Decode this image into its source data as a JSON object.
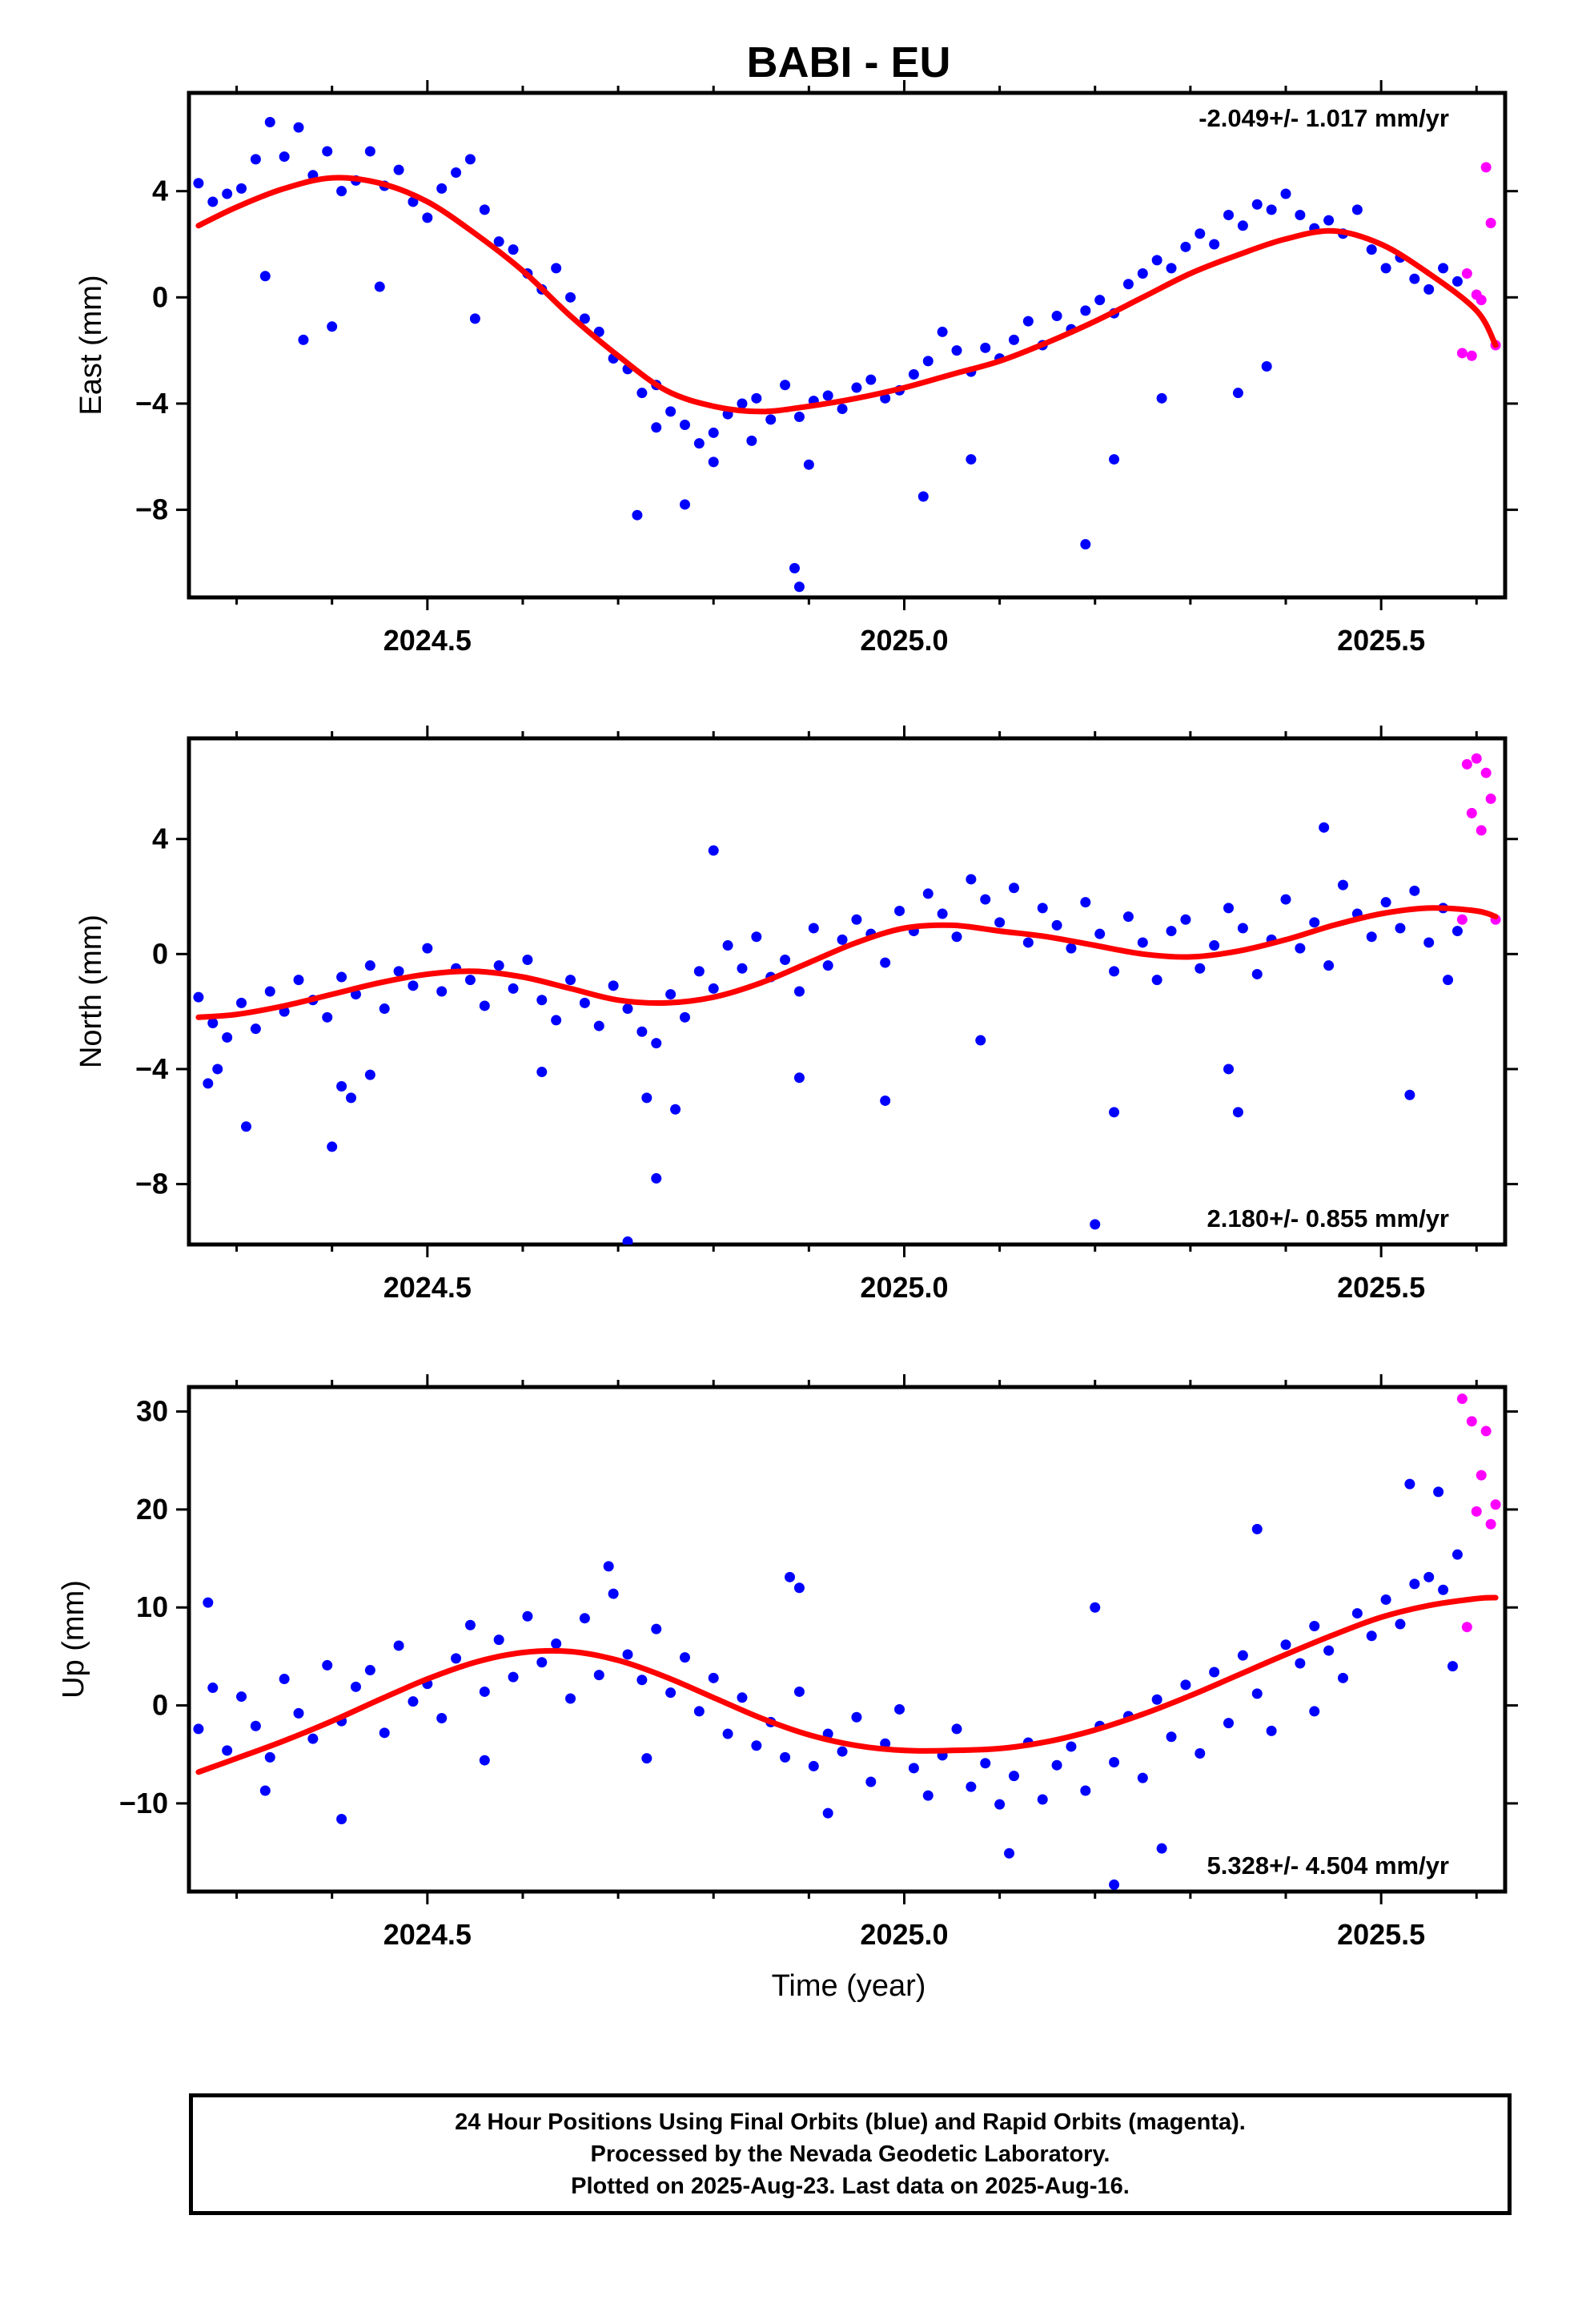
{
  "title": "BABI - EU",
  "x_axis_label": "Time (year)",
  "colors": {
    "final": "#0000ff",
    "rapid": "#ff00ff",
    "fit": "#ff0000"
  },
  "caption": [
    "24 Hour Positions Using Final Orbits (blue) and Rapid Orbits (magenta).",
    "Processed by the Nevada Geodetic Laboratory.",
    "Plotted on 2025-Aug-23. Last data on 2025-Aug-16."
  ],
  "chart_data": [
    {
      "type": "scatter",
      "ylabel": "East (mm)",
      "rate_text": "-2.049+/- 1.017 mm/yr",
      "rate_position": "top-right",
      "xlim": [
        2024.25,
        2025.63
      ],
      "ylim": [
        -11.3,
        7.7
      ],
      "xticks": [
        "2024.5",
        "2025.0",
        "2025.5"
      ],
      "yticks": [
        "4",
        "0",
        "−4",
        "−8"
      ],
      "fit": {
        "x": [
          2024.26,
          2024.3,
          2024.35,
          2024.4,
          2024.45,
          2024.5,
          2024.55,
          2024.6,
          2024.65,
          2024.7,
          2024.75,
          2024.8,
          2024.85,
          2024.9,
          2024.95,
          2025.0,
          2025.05,
          2025.1,
          2025.15,
          2025.2,
          2025.25,
          2025.3,
          2025.35,
          2025.4,
          2025.45,
          2025.5,
          2025.55,
          2025.6,
          2025.62
        ],
        "y": [
          2.7,
          3.4,
          4.1,
          4.5,
          4.3,
          3.6,
          2.4,
          1.0,
          -0.7,
          -2.2,
          -3.5,
          -4.1,
          -4.3,
          -4.1,
          -3.8,
          -3.4,
          -2.9,
          -2.4,
          -1.7,
          -0.9,
          0.0,
          0.9,
          1.6,
          2.2,
          2.5,
          2.0,
          0.9,
          -0.5,
          -1.8
        ]
      },
      "final_points": {
        "x": [
          2024.26,
          2024.275,
          2024.29,
          2024.305,
          2024.32,
          2024.335,
          2024.35,
          2024.365,
          2024.38,
          2024.395,
          2024.41,
          2024.425,
          2024.44,
          2024.455,
          2024.47,
          2024.485,
          2024.5,
          2024.515,
          2024.53,
          2024.545,
          2024.56,
          2024.575,
          2024.59,
          2024.605,
          2024.62,
          2024.635,
          2024.65,
          2024.665,
          2024.68,
          2024.695,
          2024.71,
          2024.725,
          2024.74,
          2024.755,
          2024.77,
          2024.785,
          2024.8,
          2024.815,
          2024.83,
          2024.845,
          2024.86,
          2024.875,
          2024.89,
          2024.905,
          2024.92,
          2024.935,
          2024.95,
          2024.965,
          2024.98,
          2024.995,
          2025.01,
          2025.025,
          2025.04,
          2025.055,
          2025.07,
          2025.085,
          2025.1,
          2025.115,
          2025.13,
          2025.145,
          2025.16,
          2025.175,
          2025.19,
          2025.205,
          2025.22,
          2025.235,
          2025.25,
          2025.265,
          2025.28,
          2025.295,
          2025.31,
          2025.325,
          2025.34,
          2025.355,
          2025.37,
          2025.385,
          2025.4,
          2025.415,
          2025.43,
          2025.445,
          2025.46,
          2025.475,
          2025.49,
          2025.505,
          2025.52,
          2025.535,
          2025.55,
          2025.565,
          2025.58,
          2024.33,
          2024.37,
          2024.4,
          2024.45,
          2024.55,
          2024.72,
          2024.74,
          2024.77,
          2024.8,
          2024.84,
          2024.885,
          2024.89,
          2024.9,
          2025.02,
          2025.07,
          2025.19,
          2025.22,
          2025.27,
          2025.35,
          2025.38
        ],
        "y": [
          4.3,
          3.6,
          3.9,
          4.1,
          5.2,
          6.6,
          5.3,
          6.4,
          4.6,
          5.5,
          4.0,
          4.4,
          5.5,
          4.2,
          4.8,
          3.6,
          3.0,
          4.1,
          4.7,
          5.2,
          3.3,
          2.1,
          1.8,
          0.9,
          0.3,
          1.1,
          0.0,
          -0.8,
          -1.3,
          -2.3,
          -2.7,
          -3.6,
          -3.3,
          -4.3,
          -4.8,
          -5.5,
          -5.1,
          -4.4,
          -4.0,
          -3.8,
          -4.6,
          -3.3,
          -4.5,
          -3.9,
          -3.7,
          -4.2,
          -3.4,
          -3.1,
          -3.8,
          -3.5,
          -2.9,
          -2.4,
          -1.3,
          -2.0,
          -2.8,
          -1.9,
          -2.3,
          -1.6,
          -0.9,
          -1.8,
          -0.7,
          -1.2,
          -0.5,
          -0.1,
          -0.6,
          0.5,
          0.9,
          1.4,
          1.1,
          1.9,
          2.4,
          2.0,
          3.1,
          2.7,
          3.5,
          3.3,
          3.9,
          3.1,
          2.6,
          2.9,
          2.4,
          3.3,
          1.8,
          1.1,
          1.5,
          0.7,
          0.3,
          1.1,
          0.6,
          0.8,
          -1.6,
          -1.1,
          0.4,
          -0.8,
          -8.2,
          -4.9,
          -7.8,
          -6.2,
          -5.4,
          -10.2,
          -10.9,
          -6.3,
          -7.5,
          -6.1,
          -9.3,
          -6.1,
          -3.8,
          -3.6,
          -2.6
        ],
        "note": ""
      },
      "rapid_points": {
        "x": [
          2025.585,
          2025.59,
          2025.595,
          2025.6,
          2025.605,
          2025.61,
          2025.615,
          2025.62
        ],
        "y": [
          -2.1,
          0.9,
          -2.2,
          0.1,
          -0.1,
          4.9,
          2.8,
          -1.8
        ]
      }
    },
    {
      "type": "scatter",
      "ylabel": "North (mm)",
      "rate_text": "2.180+/- 0.855 mm/yr",
      "rate_position": "bottom-right",
      "xlim": [
        2024.25,
        2025.63
      ],
      "ylim": [
        -10.1,
        7.5
      ],
      "xticks": [
        "2024.5",
        "2025.0",
        "2025.5"
      ],
      "yticks": [
        "4",
        "0",
        "−4",
        "−8"
      ],
      "fit": {
        "x": [
          2024.26,
          2024.3,
          2024.35,
          2024.4,
          2024.45,
          2024.5,
          2024.55,
          2024.6,
          2024.65,
          2024.7,
          2024.75,
          2024.8,
          2024.85,
          2024.9,
          2024.95,
          2025.0,
          2025.05,
          2025.1,
          2025.15,
          2025.2,
          2025.25,
          2025.3,
          2025.35,
          2025.4,
          2025.45,
          2025.5,
          2025.55,
          2025.6,
          2025.62
        ],
        "y": [
          -2.2,
          -2.1,
          -1.8,
          -1.4,
          -1.0,
          -0.7,
          -0.6,
          -0.8,
          -1.2,
          -1.6,
          -1.7,
          -1.5,
          -1.0,
          -0.3,
          0.4,
          0.9,
          1.0,
          0.8,
          0.6,
          0.3,
          0.0,
          -0.1,
          0.1,
          0.5,
          1.0,
          1.4,
          1.6,
          1.5,
          1.3
        ]
      },
      "final_points": {
        "x": [
          2024.26,
          2024.275,
          2024.29,
          2024.305,
          2024.32,
          2024.335,
          2024.35,
          2024.365,
          2024.38,
          2024.395,
          2024.41,
          2024.425,
          2024.44,
          2024.455,
          2024.47,
          2024.485,
          2024.5,
          2024.515,
          2024.53,
          2024.545,
          2024.56,
          2024.575,
          2024.59,
          2024.605,
          2024.62,
          2024.635,
          2024.65,
          2024.665,
          2024.68,
          2024.695,
          2024.71,
          2024.725,
          2024.74,
          2024.755,
          2024.77,
          2024.785,
          2024.8,
          2024.815,
          2024.83,
          2024.845,
          2024.86,
          2024.875,
          2024.89,
          2024.905,
          2024.92,
          2024.935,
          2024.95,
          2024.965,
          2024.98,
          2024.995,
          2025.01,
          2025.025,
          2025.04,
          2025.055,
          2025.07,
          2025.085,
          2025.1,
          2025.115,
          2025.13,
          2025.145,
          2025.16,
          2025.175,
          2025.19,
          2025.205,
          2025.22,
          2025.235,
          2025.25,
          2025.265,
          2025.28,
          2025.295,
          2025.31,
          2025.325,
          2025.34,
          2025.355,
          2025.37,
          2025.385,
          2025.4,
          2025.415,
          2025.43,
          2025.445,
          2025.46,
          2025.475,
          2025.49,
          2025.505,
          2025.52,
          2025.535,
          2025.55,
          2025.565,
          2025.58,
          2024.27,
          2024.28,
          2024.31,
          2024.4,
          2024.41,
          2024.42,
          2024.44,
          2024.62,
          2024.71,
          2024.74,
          2024.76,
          2024.73,
          2024.8,
          2024.89,
          2024.98,
          2025.08,
          2025.2,
          2025.22,
          2025.34,
          2025.35,
          2025.44,
          2025.53,
          2025.57
        ],
        "y": [
          -1.5,
          -2.4,
          -2.9,
          -1.7,
          -2.6,
          -1.3,
          -2.0,
          -0.9,
          -1.6,
          -2.2,
          -0.8,
          -1.4,
          -0.4,
          -1.9,
          -0.6,
          -1.1,
          0.2,
          -1.3,
          -0.5,
          -0.9,
          -1.8,
          -0.4,
          -1.2,
          -0.2,
          -1.6,
          -2.3,
          -0.9,
          -1.7,
          -2.5,
          -1.1,
          -1.9,
          -2.7,
          -3.1,
          -1.4,
          -2.2,
          -0.6,
          -1.2,
          0.3,
          -0.5,
          0.6,
          -0.8,
          -0.2,
          -1.3,
          0.9,
          -0.4,
          0.5,
          1.2,
          0.7,
          -0.3,
          1.5,
          0.8,
          2.1,
          1.4,
          0.6,
          2.6,
          1.9,
          1.1,
          2.3,
          0.4,
          1.6,
          1.0,
          0.2,
          1.8,
          0.7,
          -0.6,
          1.3,
          0.4,
          -0.9,
          0.8,
          1.2,
          -0.5,
          0.3,
          1.6,
          0.9,
          -0.7,
          0.5,
          1.9,
          0.2,
          1.1,
          -0.4,
          2.4,
          1.4,
          0.6,
          1.8,
          0.9,
          2.2,
          0.4,
          1.6,
          0.8,
          -4.5,
          -4.0,
          -6.0,
          -6.7,
          -4.6,
          -5.0,
          -4.2,
          -4.1,
          -10.0,
          -7.8,
          -5.4,
          -5.0,
          3.6,
          -4.3,
          -5.1,
          -3.0,
          -9.4,
          -5.5,
          -4.0,
          -5.5,
          4.4,
          -4.9,
          -0.9
        ],
        "note": ""
      },
      "rapid_points": {
        "x": [
          2025.585,
          2025.59,
          2025.595,
          2025.6,
          2025.605,
          2025.61,
          2025.615,
          2025.62
        ],
        "y": [
          1.2,
          6.6,
          4.9,
          6.8,
          4.3,
          6.3,
          5.4,
          1.2
        ]
      }
    },
    {
      "type": "scatter",
      "ylabel": "Up (mm)",
      "rate_text": "5.328+/- 4.504 mm/yr",
      "rate_position": "bottom-right",
      "xlim": [
        2024.25,
        2025.63
      ],
      "ylim": [
        -19,
        32.5
      ],
      "xticks": [
        "2024.5",
        "2025.0",
        "2025.5"
      ],
      "yticks": [
        "30",
        "20",
        "10",
        "0",
        "−10"
      ],
      "fit": {
        "x": [
          2024.26,
          2024.3,
          2024.35,
          2024.4,
          2024.45,
          2024.5,
          2024.55,
          2024.6,
          2024.65,
          2024.7,
          2024.75,
          2024.8,
          2024.85,
          2024.9,
          2024.95,
          2025.0,
          2025.05,
          2025.1,
          2025.15,
          2025.2,
          2025.25,
          2025.3,
          2025.35,
          2025.4,
          2025.45,
          2025.5,
          2025.55,
          2025.6,
          2025.62
        ],
        "y": [
          -6.8,
          -5.4,
          -3.6,
          -1.6,
          0.6,
          2.7,
          4.4,
          5.4,
          5.5,
          4.6,
          2.9,
          0.8,
          -1.3,
          -3.0,
          -4.1,
          -4.6,
          -4.6,
          -4.4,
          -3.7,
          -2.5,
          -0.9,
          1.0,
          3.1,
          5.2,
          7.2,
          9.0,
          10.2,
          10.9,
          11.0
        ]
      },
      "final_points": {
        "x": [
          2024.26,
          2024.275,
          2024.29,
          2024.305,
          2024.32,
          2024.335,
          2024.35,
          2024.365,
          2024.38,
          2024.395,
          2024.41,
          2024.425,
          2024.44,
          2024.455,
          2024.47,
          2024.485,
          2024.5,
          2024.515,
          2024.53,
          2024.545,
          2024.56,
          2024.575,
          2024.59,
          2024.605,
          2024.62,
          2024.635,
          2024.65,
          2024.665,
          2024.68,
          2024.695,
          2024.71,
          2024.725,
          2024.74,
          2024.755,
          2024.77,
          2024.785,
          2024.8,
          2024.815,
          2024.83,
          2024.845,
          2024.86,
          2024.875,
          2024.89,
          2024.905,
          2024.92,
          2024.935,
          2024.95,
          2024.965,
          2024.98,
          2024.995,
          2025.01,
          2025.025,
          2025.04,
          2025.055,
          2025.07,
          2025.085,
          2025.1,
          2025.115,
          2025.13,
          2025.145,
          2025.16,
          2025.175,
          2025.19,
          2025.205,
          2025.22,
          2025.235,
          2025.25,
          2025.265,
          2025.28,
          2025.295,
          2025.31,
          2025.325,
          2025.34,
          2025.355,
          2025.37,
          2025.385,
          2025.4,
          2025.415,
          2025.43,
          2025.445,
          2025.46,
          2025.475,
          2025.49,
          2025.505,
          2025.52,
          2025.535,
          2025.55,
          2025.565,
          2025.58,
          2024.27,
          2024.33,
          2024.41,
          2024.56,
          2024.69,
          2024.73,
          2024.88,
          2024.89,
          2024.92,
          2025.11,
          2025.2,
          2025.22,
          2025.27,
          2025.37,
          2025.43,
          2025.53,
          2025.56,
          2025.575
        ],
        "y": [
          -2.4,
          1.8,
          -4.6,
          0.9,
          -2.1,
          -5.3,
          2.7,
          -0.8,
          -3.4,
          4.1,
          -1.6,
          1.9,
          3.6,
          -2.8,
          6.1,
          0.4,
          2.2,
          -1.3,
          4.8,
          8.2,
          1.4,
          6.7,
          2.9,
          9.1,
          4.4,
          6.3,
          0.7,
          8.9,
          3.1,
          11.4,
          5.2,
          2.6,
          7.8,
          1.3,
          4.9,
          -0.6,
          2.8,
          -2.9,
          0.8,
          -4.1,
          -1.7,
          -5.3,
          1.4,
          -6.2,
          -2.9,
          -4.7,
          -1.2,
          -7.8,
          -3.9,
          -0.4,
          -6.4,
          -9.2,
          -5.1,
          -2.4,
          -8.3,
          -5.9,
          -10.1,
          -7.2,
          -3.8,
          -9.6,
          -6.1,
          -4.2,
          -8.7,
          -2.1,
          -5.8,
          -1.1,
          -7.4,
          0.6,
          -3.2,
          2.1,
          -4.9,
          3.4,
          -1.8,
          5.1,
          1.2,
          -2.6,
          6.2,
          4.3,
          8.1,
          5.6,
          2.8,
          9.4,
          7.1,
          10.8,
          8.3,
          12.4,
          13.1,
          11.8,
          15.4,
          10.5,
          -8.7,
          -11.6,
          -5.6,
          14.2,
          -5.4,
          13.1,
          12.0,
          -11.0,
          -15.1,
          10.0,
          -18.3,
          -14.6,
          18.0,
          -0.6,
          22.6,
          21.8,
          4.0
        ],
        "note": ""
      },
      "rapid_points": {
        "x": [
          2025.585,
          2025.59,
          2025.595,
          2025.6,
          2025.605,
          2025.61,
          2025.615,
          2025.62
        ],
        "y": [
          31.3,
          8.0,
          29.0,
          19.8,
          23.5,
          28.0,
          18.5,
          20.5
        ]
      }
    }
  ]
}
